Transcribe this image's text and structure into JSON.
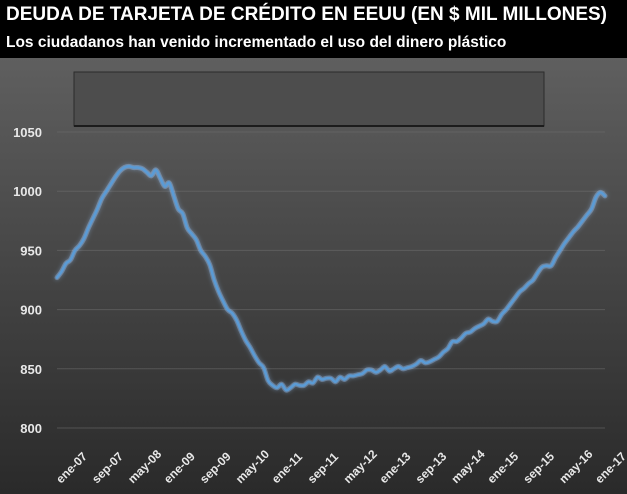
{
  "header": {
    "title": "DEUDA DE TARJETA DE CRÉDITO EN EEUU (EN $ MIL MILLONES)",
    "subtitle": "Los ciudadanos han venido incrementado el uso del dinero plástico"
  },
  "colors": {
    "line": "#5b9bd5",
    "line_glow": "#9cc8ff",
    "text": "#ffffff",
    "grid": "#6f6f6f"
  },
  "chart_data": {
    "type": "line",
    "title": "DEUDA DE TARJETA DE CRÉDITO EN EEUU (EN $ MIL MILLONES)",
    "subtitle": "Los ciudadanos han venido incrementado el uso del dinero plástico",
    "ylim": [
      800,
      1050
    ],
    "yticks": [
      "800",
      "850",
      "900",
      "950",
      "1000",
      "1050"
    ],
    "ytick_values": [
      800,
      850,
      900,
      950,
      1000,
      1050
    ],
    "grid": true,
    "xtick_labels": [
      "ene-07",
      "sep-07",
      "may-08",
      "ene-09",
      "sep-09",
      "may-10",
      "ene-11",
      "sep-11",
      "may-12",
      "ene-13",
      "sep-13",
      "may-14",
      "ene-15",
      "sep-15",
      "may-16",
      "ene-17"
    ],
    "x_start": "ene-07",
    "x_end": "feb-17",
    "series": [
      {
        "values": [
          927,
          932,
          939,
          942,
          950,
          954,
          960,
          969,
          977,
          985,
          994,
          1000,
          1006,
          1012,
          1017,
          1020,
          1021,
          1020,
          1020,
          1019,
          1016,
          1013,
          1018,
          1011,
          1004,
          1007,
          996,
          985,
          981,
          969,
          964,
          959,
          950,
          945,
          938,
          925,
          915,
          907,
          900,
          897,
          891,
          882,
          874,
          868,
          861,
          855,
          851,
          840,
          836,
          834,
          837,
          832,
          834,
          837,
          836,
          836,
          839,
          838,
          843,
          841,
          842,
          842,
          839,
          843,
          841,
          844,
          844,
          845,
          846,
          849,
          849,
          847,
          849,
          852,
          848,
          850,
          852,
          850,
          851,
          852,
          854,
          857,
          855,
          856,
          858,
          860,
          864,
          867,
          873,
          873,
          876,
          880,
          881,
          884,
          886,
          888,
          892,
          890,
          890,
          896,
          900,
          905,
          910,
          915,
          918,
          922,
          925,
          931,
          936,
          937,
          937,
          944,
          950,
          956,
          961,
          966,
          970,
          975,
          980,
          985,
          995,
          999,
          996
        ]
      }
    ]
  }
}
